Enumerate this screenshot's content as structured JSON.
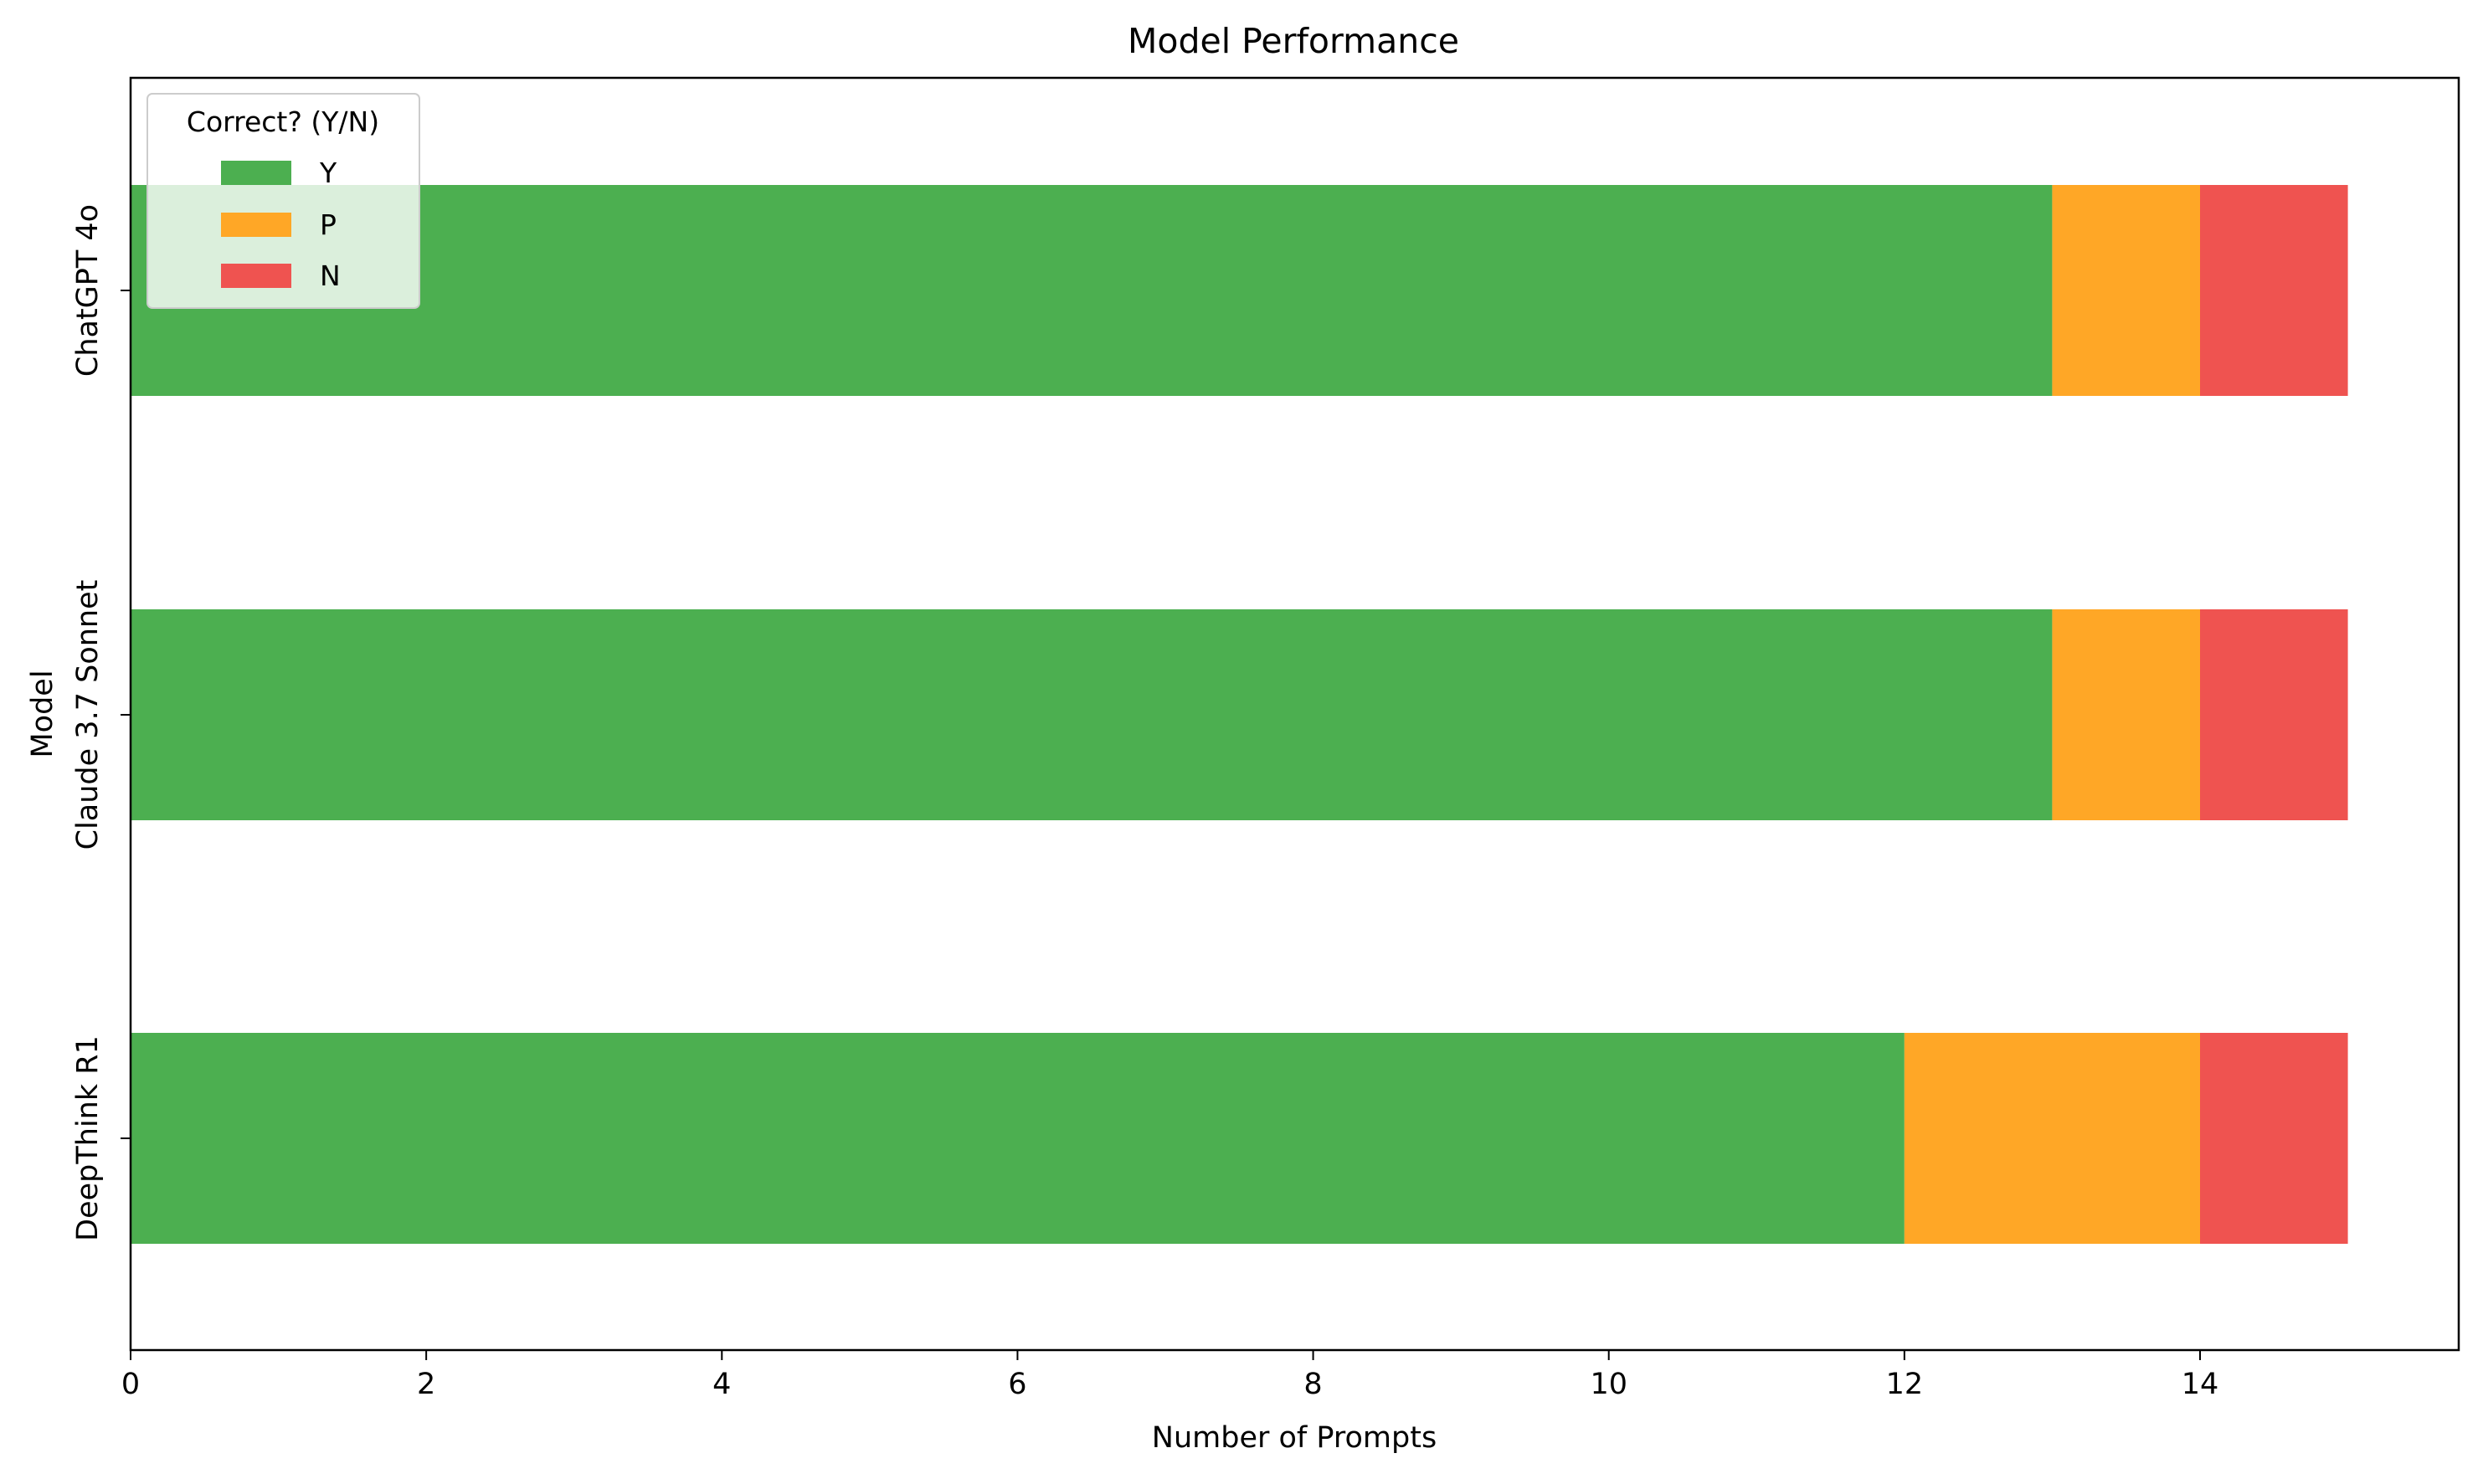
{
  "chart_data": {
    "type": "bar",
    "orientation": "horizontal",
    "stacked": true,
    "title": "Model Performance",
    "xlabel": "Number of Prompts",
    "ylabel": "Model",
    "categories": [
      "DeepThink R1",
      "Claude 3.7 Sonnet",
      "ChatGPT 4o"
    ],
    "series": [
      {
        "name": "Y",
        "values": [
          12,
          13,
          13
        ],
        "color": "#4caf50"
      },
      {
        "name": "P",
        "values": [
          2,
          1,
          1
        ],
        "color": "#ffa726"
      },
      {
        "name": "N",
        "values": [
          1,
          1,
          1
        ],
        "color": "#ef5350"
      }
    ],
    "xlim": [
      0,
      15.75
    ],
    "xticks": [
      0,
      2,
      4,
      6,
      8,
      10,
      12,
      14
    ],
    "xtick_labels": [
      "0",
      "2",
      "4",
      "6",
      "8",
      "10",
      "12",
      "14"
    ],
    "grid": false,
    "legend": {
      "title": "Correct? (Y/N)",
      "placement": "upper-left",
      "entries": [
        "Y",
        "P",
        "N"
      ]
    }
  }
}
